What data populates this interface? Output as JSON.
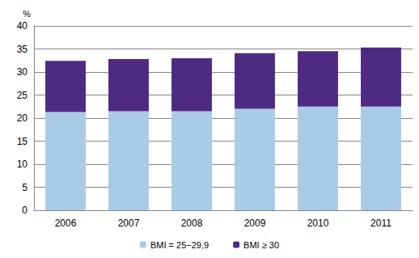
{
  "chart_data": {
    "type": "bar",
    "stacked": true,
    "grid": true,
    "legend": "bottom",
    "y_label": "%",
    "categories": [
      "2006",
      "2007",
      "2008",
      "2009",
      "2010",
      "2011"
    ],
    "series": [
      {
        "name": "BMI = 25−29,9",
        "color": "#a9cbe6",
        "values": [
          21.3,
          21.5,
          21.5,
          22.0,
          22.5,
          22.5
        ]
      },
      {
        "name": "BMI ≥ 30",
        "color": "#4f2a83",
        "values": [
          11.1,
          11.3,
          11.5,
          12.1,
          12.0,
          12.8
        ]
      }
    ],
    "ylim": [
      0,
      40
    ],
    "yticks": [
      0,
      5,
      10,
      15,
      20,
      25,
      30,
      35,
      40
    ]
  }
}
